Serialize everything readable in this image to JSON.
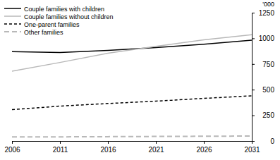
{
  "chart_data": {
    "type": "line",
    "ylabel": "'000",
    "x": [
      2006,
      2011,
      2016,
      2021,
      2026,
      2031
    ],
    "series": [
      {
        "name": "Couple families with children",
        "color": "#000000",
        "line_style": "solid",
        "values": [
          870,
          862,
          882,
          910,
          942,
          982
        ]
      },
      {
        "name": "Couple families without children",
        "color": "#b8b8b8",
        "line_style": "solid",
        "values": [
          680,
          765,
          855,
          922,
          985,
          1035
        ]
      },
      {
        "name": "One-parent families",
        "color": "#000000",
        "line_style": "dashed",
        "values": [
          305,
          340,
          365,
          388,
          415,
          440
        ]
      },
      {
        "name": "Other families",
        "color": "#b8b8b8",
        "line_style": "dashed",
        "values": [
          40,
          40,
          42,
          44,
          46,
          48
        ]
      }
    ],
    "xlim": [
      2006,
      2031
    ],
    "xticks": [
      2006,
      2011,
      2016,
      2021,
      2026,
      2031
    ],
    "ylim": [
      0,
      1250
    ],
    "yticks": [
      0,
      250,
      500,
      750,
      1000,
      1250
    ],
    "grid": false,
    "legend": "upper left"
  }
}
